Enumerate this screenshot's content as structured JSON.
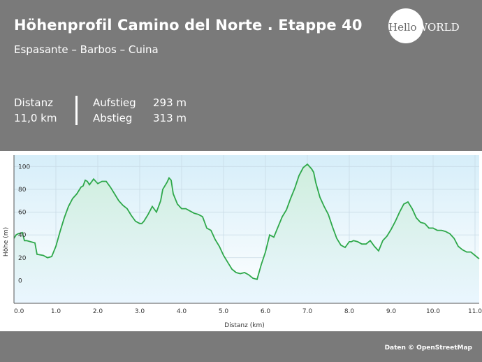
{
  "header": {
    "title": "Höhenprofil Camino del Norte . Etappe 40",
    "subtitle": "Espasante – Barbos – Cuina",
    "logo_left": "Hello",
    "logo_right": "WORLD"
  },
  "stats": {
    "distance_label": "Distanz",
    "distance_value": "11,0 km",
    "ascent_label": "Aufstieg",
    "ascent_value": "293 m",
    "descent_label": "Abstieg",
    "descent_value": "313 m"
  },
  "footer": {
    "credit": "Daten © OpenStreetMap"
  },
  "colors": {
    "background": "#7a7a7a",
    "line": "#2ea84a",
    "fill_top": "#cfeedd",
    "fill_bottom": "#eaf6ff"
  },
  "chart_data": {
    "type": "area",
    "xlabel": "Distanz (km)",
    "ylabel": "Höhe (m)",
    "xlim": [
      0,
      11.1
    ],
    "ylim": [
      -20,
      110
    ],
    "x_ticks": [
      "0.0",
      "1.0",
      "2.0",
      "3.0",
      "4.0",
      "5.0",
      "6.0",
      "7.0",
      "8.0",
      "9.0",
      "10.0",
      "11.0"
    ],
    "y_ticks": [
      "0",
      "20",
      "40",
      "60",
      "80",
      "100"
    ],
    "grid": true,
    "x": [
      0,
      0.05,
      0.1,
      0.2,
      0.25,
      0.3,
      0.5,
      0.55,
      0.7,
      0.8,
      0.9,
      1.0,
      1.1,
      1.2,
      1.3,
      1.4,
      1.5,
      1.6,
      1.65,
      1.7,
      1.75,
      1.8,
      1.9,
      2.0,
      2.1,
      2.2,
      2.3,
      2.4,
      2.5,
      2.6,
      2.7,
      2.8,
      2.9,
      3.0,
      3.05,
      3.1,
      3.2,
      3.3,
      3.4,
      3.5,
      3.55,
      3.65,
      3.7,
      3.75,
      3.8,
      3.9,
      4.0,
      4.1,
      4.2,
      4.3,
      4.4,
      4.5,
      4.6,
      4.7,
      4.8,
      4.9,
      5.0,
      5.1,
      5.2,
      5.3,
      5.4,
      5.5,
      5.6,
      5.7,
      5.8,
      5.9,
      6.0,
      6.1,
      6.2,
      6.3,
      6.4,
      6.5,
      6.6,
      6.7,
      6.8,
      6.9,
      7.0,
      7.1,
      7.15,
      7.2,
      7.3,
      7.4,
      7.5,
      7.6,
      7.7,
      7.8,
      7.9,
      8.0,
      8.05,
      8.1,
      8.2,
      8.3,
      8.4,
      8.5,
      8.6,
      8.7,
      8.8,
      8.9,
      9.0,
      9.1,
      9.2,
      9.3,
      9.4,
      9.5,
      9.6,
      9.7,
      9.8,
      9.9,
      10.0,
      10.1,
      10.2,
      10.3,
      10.4,
      10.5,
      10.6,
      10.7,
      10.8,
      10.9,
      11.0,
      11.1
    ],
    "y": [
      37,
      40,
      41,
      42,
      35,
      35,
      33,
      23,
      22,
      20,
      21,
      30,
      43,
      55,
      65,
      72,
      76,
      82,
      83,
      88,
      87,
      84,
      89,
      85,
      87,
      87,
      82,
      76,
      70,
      66,
      63,
      57,
      52,
      50,
      50,
      52,
      58,
      65,
      60,
      70,
      80,
      86,
      90,
      88,
      76,
      67,
      63,
      63,
      61,
      59,
      58,
      56,
      46,
      44,
      36,
      30,
      22,
      16,
      10,
      7,
      6,
      7,
      5,
      2,
      1,
      14,
      25,
      40,
      38,
      47,
      56,
      62,
      72,
      81,
      92,
      99,
      102,
      98,
      95,
      86,
      73,
      65,
      58,
      47,
      37,
      31,
      29,
      34,
      34,
      35,
      34,
      32,
      32,
      35,
      30,
      26,
      35,
      39,
      45,
      52,
      60,
      67,
      69,
      63,
      55,
      51,
      50,
      46,
      46,
      44,
      44,
      43,
      41,
      37,
      30,
      27,
      25,
      25,
      22,
      19
    ]
  }
}
